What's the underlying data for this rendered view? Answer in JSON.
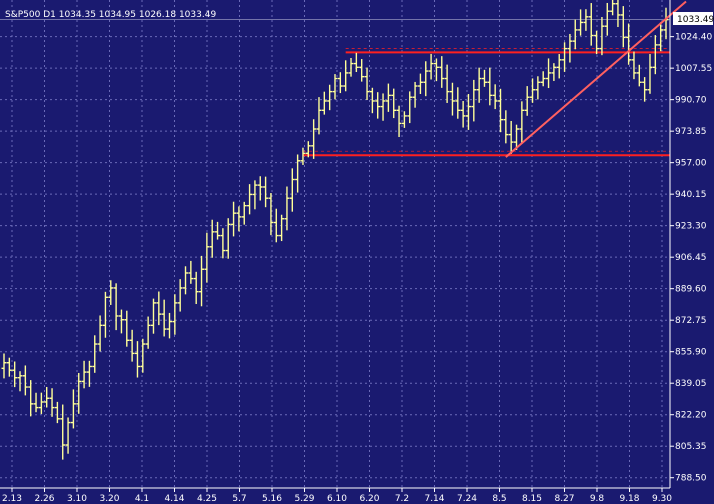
{
  "chart_data": {
    "type": "ohlc",
    "header": {
      "symbol": "S&P500",
      "timeframe": "D1",
      "open": "1034.35",
      "high": "1034.95",
      "low": "1026.18",
      "close": "1033.49"
    },
    "last_price_label": "1033.49",
    "y_ticks": [
      "1024.40",
      "1007.55",
      "990.70",
      "973.85",
      "957.00",
      "940.15",
      "923.30",
      "906.45",
      "889.60",
      "872.75",
      "855.90",
      "839.05",
      "822.20",
      "805.35",
      "788.50"
    ],
    "x_ticks": [
      "2.13",
      "2.26",
      "3.10",
      "3.20",
      "4.1",
      "4.14",
      "4.25",
      "5.7",
      "5.16",
      "5.29",
      "6.10",
      "6.20",
      "7.2",
      "7.14",
      "7.24",
      "8.5",
      "8.15",
      "8.27",
      "9.8",
      "9.18",
      "9.30"
    ],
    "ylim": [
      783,
      1044
    ],
    "grid": true,
    "colors": {
      "background": "#1a1a70",
      "bars": "#ffff99",
      "grid": "#6a6ab8",
      "support_resistance": "#ff2020",
      "trendline": "#ff6060"
    },
    "closes": [
      850,
      846,
      842,
      843,
      837,
      828,
      826,
      829,
      831,
      826,
      820,
      806,
      818,
      828,
      840,
      845,
      848,
      860,
      870,
      885,
      890,
      875,
      873,
      862,
      855,
      848,
      860,
      870,
      882,
      876,
      868,
      872,
      882,
      890,
      898,
      895,
      888,
      900,
      912,
      920,
      918,
      910,
      924,
      930,
      928,
      934,
      940,
      945,
      944,
      938,
      925,
      918,
      927,
      938,
      948,
      958,
      962,
      966,
      975,
      985,
      990,
      995,
      1002,
      998,
      1005,
      1010,
      1008,
      1003,
      995,
      990,
      987,
      990,
      993,
      985,
      978,
      982,
      992,
      998,
      1000,
      1006,
      1010,
      1008,
      1002,
      995,
      990,
      985,
      982,
      987,
      996,
      1002,
      1000,
      993,
      990,
      980,
      972,
      968,
      975,
      985,
      992,
      996,
      1000,
      1002,
      1005,
      1008,
      1012,
      1018,
      1022,
      1028,
      1032,
      1035,
      1025,
      1018,
      1030,
      1038,
      1042,
      1036,
      1024,
      1012,
      1005,
      1000,
      996,
      1008,
      1020,
      1028,
      1033.49
    ],
    "horizontal_levels": [
      {
        "price": 1016,
        "from_index": 64,
        "to_index": 127
      },
      {
        "price": 961,
        "from_index": 56,
        "to_index": 127
      }
    ],
    "trendline": {
      "from": {
        "index": 94,
        "price": 960
      },
      "to": {
        "index": 127,
        "price": 1040
      }
    }
  }
}
